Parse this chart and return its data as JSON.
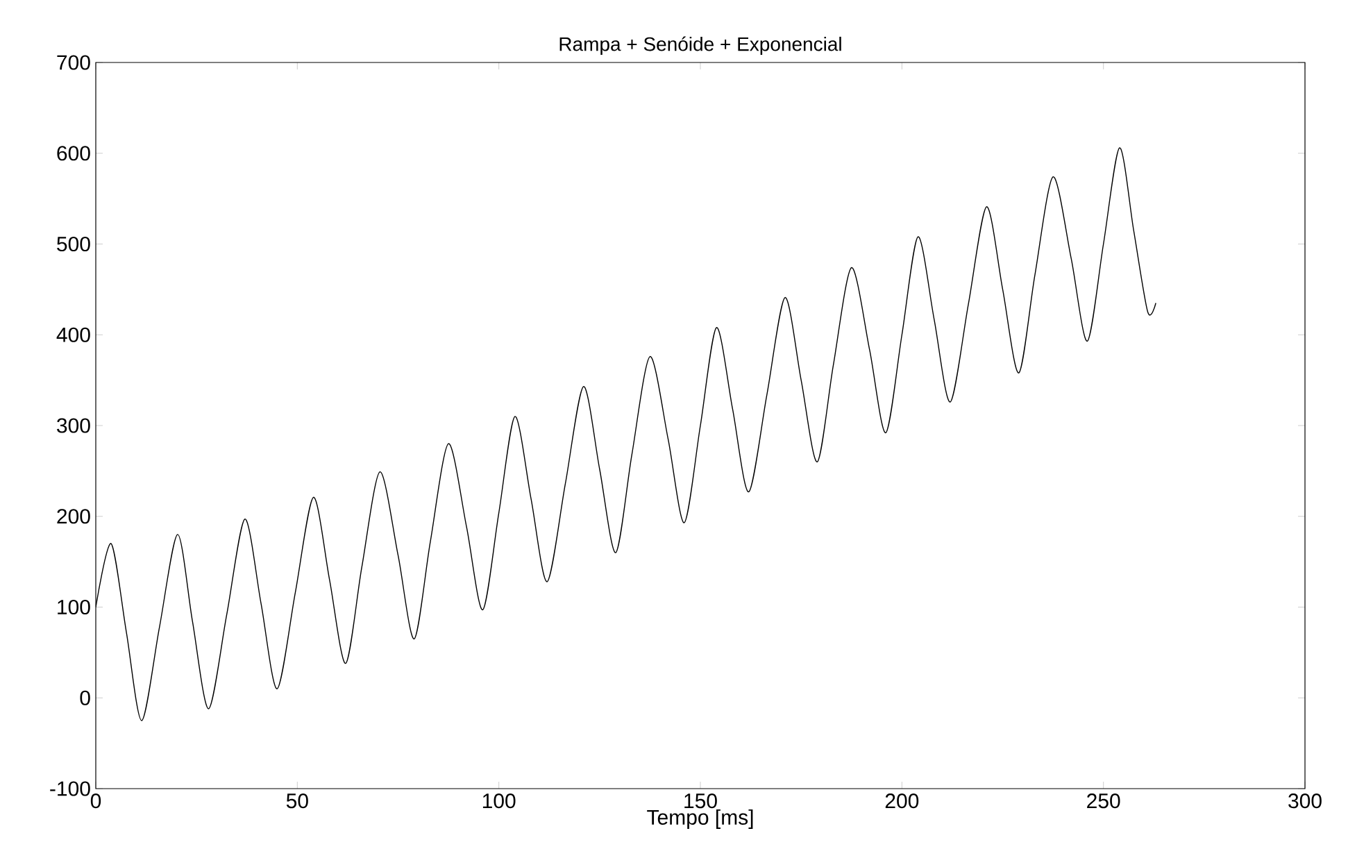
{
  "chart_data": {
    "type": "line",
    "title": "Rampa + Senóide + Exponencial",
    "xlabel": "Tempo [ms]",
    "xlim": [
      0,
      300
    ],
    "xticks": [
      0,
      50,
      100,
      150,
      200,
      250,
      300
    ],
    "ylim": [
      -100,
      700
    ],
    "yticks": [
      -100,
      0,
      100,
      200,
      300,
      400,
      500,
      600,
      700
    ],
    "grid": false,
    "marker": "none",
    "line_style": "solid",
    "series": [
      {
        "color": "#000000",
        "x": [
          0,
          3.8,
          7.6,
          11.4,
          15.8,
          20.3,
          24,
          28,
          32.5,
          37,
          41,
          45,
          49.5,
          54,
          58,
          62,
          66,
          70.5,
          75,
          79,
          83,
          87.5,
          92,
          96,
          100,
          104,
          108,
          112,
          116.5,
          121,
          125,
          129,
          133,
          137.5,
          142,
          146,
          150,
          154,
          158,
          162,
          166.5,
          171,
          175,
          179,
          183,
          187.5,
          192,
          196,
          200,
          204,
          208,
          212,
          216.5,
          221,
          225,
          229,
          233,
          237.5,
          242,
          246,
          250,
          254,
          257.5,
          261,
          263
        ],
        "values": [
          100,
          170,
          72,
          -25,
          78,
          180,
          84,
          -12,
          92,
          197,
          104,
          10,
          116,
          221,
          130,
          38,
          144,
          249,
          157,
          65,
          172,
          280,
          188,
          97,
          204,
          310,
          219,
          128,
          236,
          343,
          252,
          160,
          268,
          376,
          285,
          193,
          300,
          408,
          318,
          227,
          334,
          441,
          350,
          260,
          367,
          474,
          383,
          292,
          400,
          508,
          417,
          326,
          434,
          541,
          450,
          358,
          466,
          574,
          484,
          393,
          500,
          606,
          515,
          425,
          435
        ]
      }
    ]
  }
}
